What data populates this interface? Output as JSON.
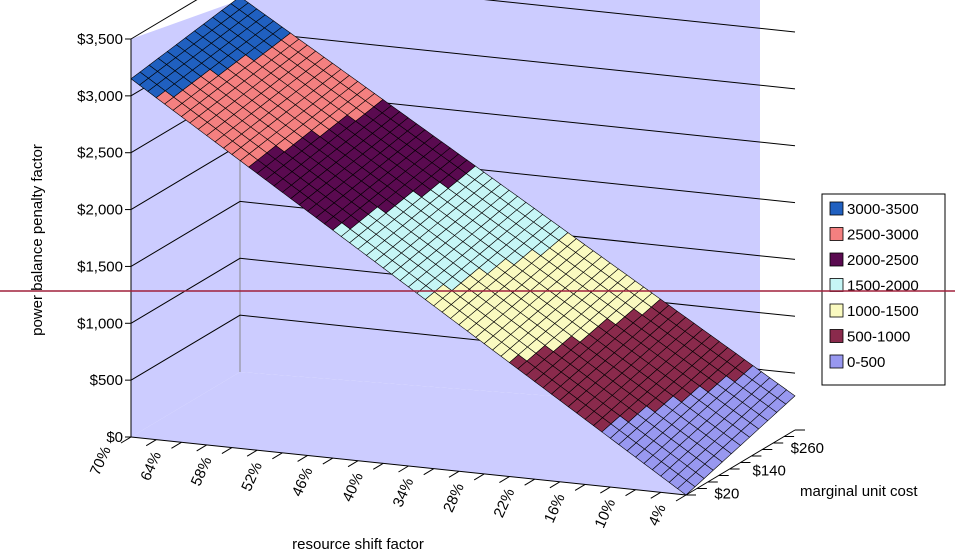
{
  "chart_data": {
    "type": "surface",
    "title": "",
    "ylabel": "power balance penalty factor",
    "xlabel": "resource shift factor",
    "zlabel": "marginal unit cost",
    "value_axis": {
      "range": [
        0,
        3500
      ],
      "ticks": [
        "$0",
        "$500",
        "$1,000",
        "$1,500",
        "$2,000",
        "$2,500",
        "$3,000",
        "$3,500"
      ]
    },
    "x_ticks": [
      "70%",
      "64%",
      "58%",
      "52%",
      "46%",
      "40%",
      "34%",
      "28%",
      "22%",
      "16%",
      "10%",
      "4%"
    ],
    "depth_ticks": [
      "$20",
      "$140",
      "$260"
    ],
    "grid": true,
    "legend_position": "right",
    "legend": [
      {
        "label": "3000-3500",
        "color": "#2060C0"
      },
      {
        "label": "2500-3000",
        "color": "#F48080"
      },
      {
        "label": "2000-2500",
        "color": "#5A0A50"
      },
      {
        "label": "1500-2000",
        "color": "#C6F6F6"
      },
      {
        "label": "1000-1500",
        "color": "#FAFAC0"
      },
      {
        "label": "500-1000",
        "color": "#8A2A4C"
      },
      {
        "label": "0-500",
        "color": "#9898F0"
      }
    ],
    "surface_value_range": {
      "at_70_percent": [
        3150,
        3300
      ],
      "at_4_percent": [
        0,
        300
      ]
    },
    "reference_line": {
      "value": 1400,
      "color": "#A0203C"
    }
  }
}
